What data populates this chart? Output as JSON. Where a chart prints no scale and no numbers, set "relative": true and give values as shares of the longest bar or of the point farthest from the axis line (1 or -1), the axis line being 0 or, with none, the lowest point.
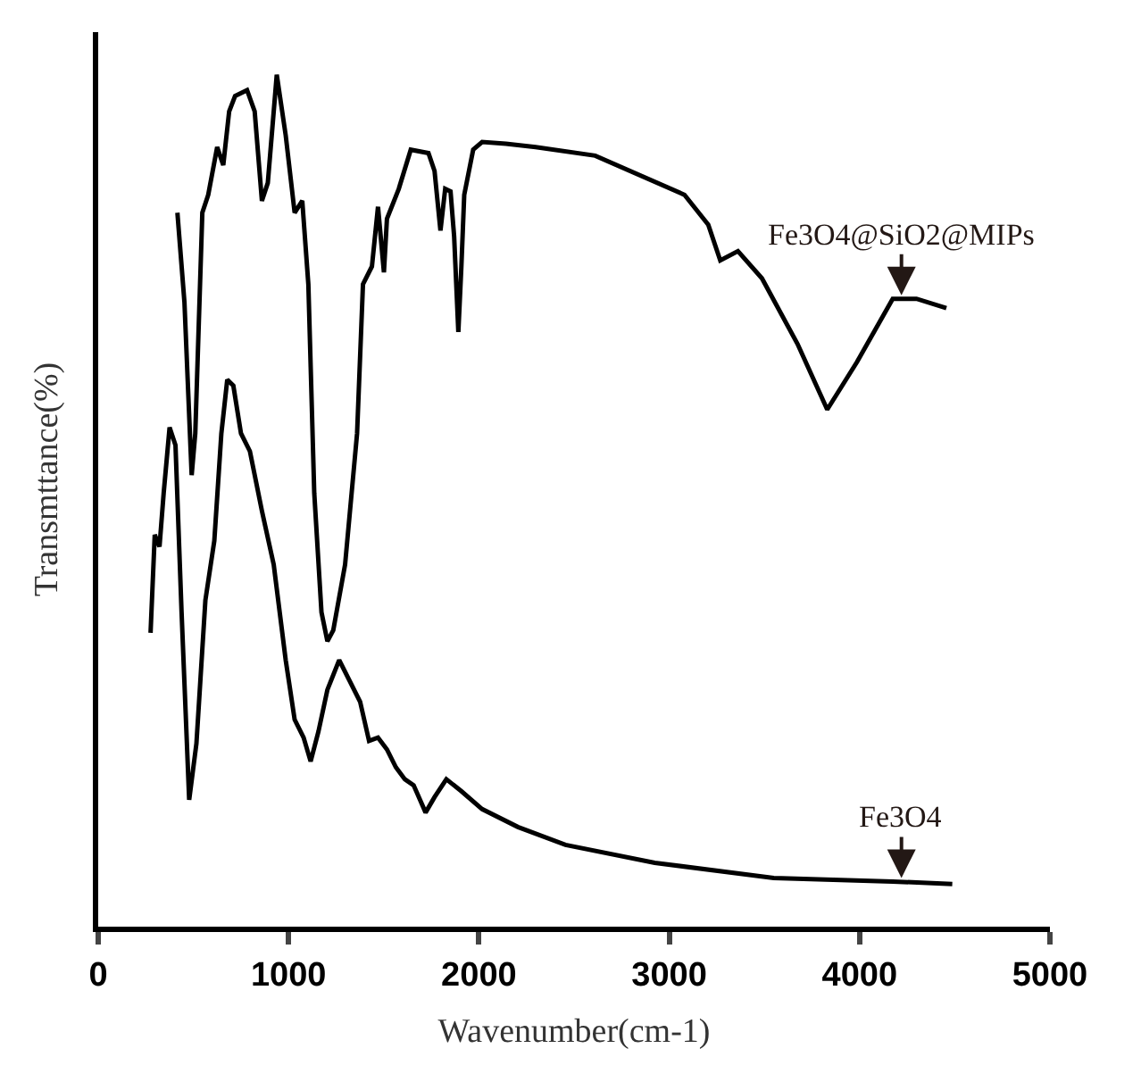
{
  "chart_data": {
    "type": "line",
    "relative": true,
    "xlabel": "Wavenumber(cm-1)",
    "ylabel": "Transmttance(%)",
    "xlim": [
      0,
      5000
    ],
    "xticks": [
      0,
      1000,
      2000,
      3000,
      4000,
      5000
    ],
    "marker": "none",
    "line_style": "solid",
    "series": [
      {
        "color": "#000000",
        "x": [
          416,
          453,
          491,
          510,
          547,
          578,
          625,
          657,
          688,
          719,
          782,
          822,
          860,
          891,
          938,
          985,
          1032,
          1072,
          1104,
          1135,
          1173,
          1204,
          1235,
          1297,
          1360,
          1391,
          1438,
          1470,
          1501,
          1517,
          1579,
          1642,
          1735,
          1767,
          1798,
          1823,
          1851,
          1870,
          1892,
          1908,
          1923,
          1970,
          2017,
          2142,
          2298,
          2611,
          3080,
          3205,
          3268,
          3361,
          3487,
          3674,
          3830,
          3987,
          4174,
          4299,
          4456
        ],
        "values": [
          0.838,
          0.733,
          0.53,
          0.579,
          0.838,
          0.859,
          0.915,
          0.894,
          0.957,
          0.975,
          0.982,
          0.957,
          0.852,
          0.873,
          1.0,
          0.929,
          0.838,
          0.852,
          0.754,
          0.509,
          0.369,
          0.335,
          0.348,
          0.425,
          0.579,
          0.754,
          0.775,
          0.845,
          0.768,
          0.831,
          0.866,
          0.912,
          0.908,
          0.887,
          0.817,
          0.866,
          0.863,
          0.81,
          0.698,
          0.775,
          0.859,
          0.912,
          0.921,
          0.919,
          0.915,
          0.905,
          0.859,
          0.824,
          0.782,
          0.793,
          0.761,
          0.684,
          0.607,
          0.663,
          0.737,
          0.737,
          0.726
        ]
      },
      {
        "color": "#000000",
        "x": [
          275,
          297,
          322,
          344,
          375,
          406,
          438,
          478,
          516,
          563,
          610,
          647,
          678,
          710,
          750,
          797,
          860,
          922,
          985,
          1032,
          1079,
          1116,
          1157,
          1204,
          1266,
          1313,
          1376,
          1423,
          1470,
          1517,
          1564,
          1611,
          1657,
          1720,
          1767,
          1829,
          1908,
          2017,
          2205,
          2455,
          2924,
          3549,
          4174,
          4487
        ],
        "values": [
          0.345,
          0.46,
          0.446,
          0.509,
          0.586,
          0.565,
          0.369,
          0.149,
          0.215,
          0.383,
          0.453,
          0.579,
          0.642,
          0.635,
          0.579,
          0.558,
          0.488,
          0.425,
          0.313,
          0.243,
          0.222,
          0.194,
          0.229,
          0.278,
          0.313,
          0.292,
          0.264,
          0.218,
          0.222,
          0.208,
          0.187,
          0.173,
          0.166,
          0.134,
          0.152,
          0.173,
          0.159,
          0.138,
          0.117,
          0.096,
          0.075,
          0.057,
          0.053,
          0.05
        ]
      }
    ],
    "annotations": [
      {
        "text": "Fe3O4@SiO2@MIPs",
        "x": 4220,
        "y": 0.737
      },
      {
        "text": "Fe3O4",
        "x": 4220,
        "y": 0.053
      }
    ]
  }
}
